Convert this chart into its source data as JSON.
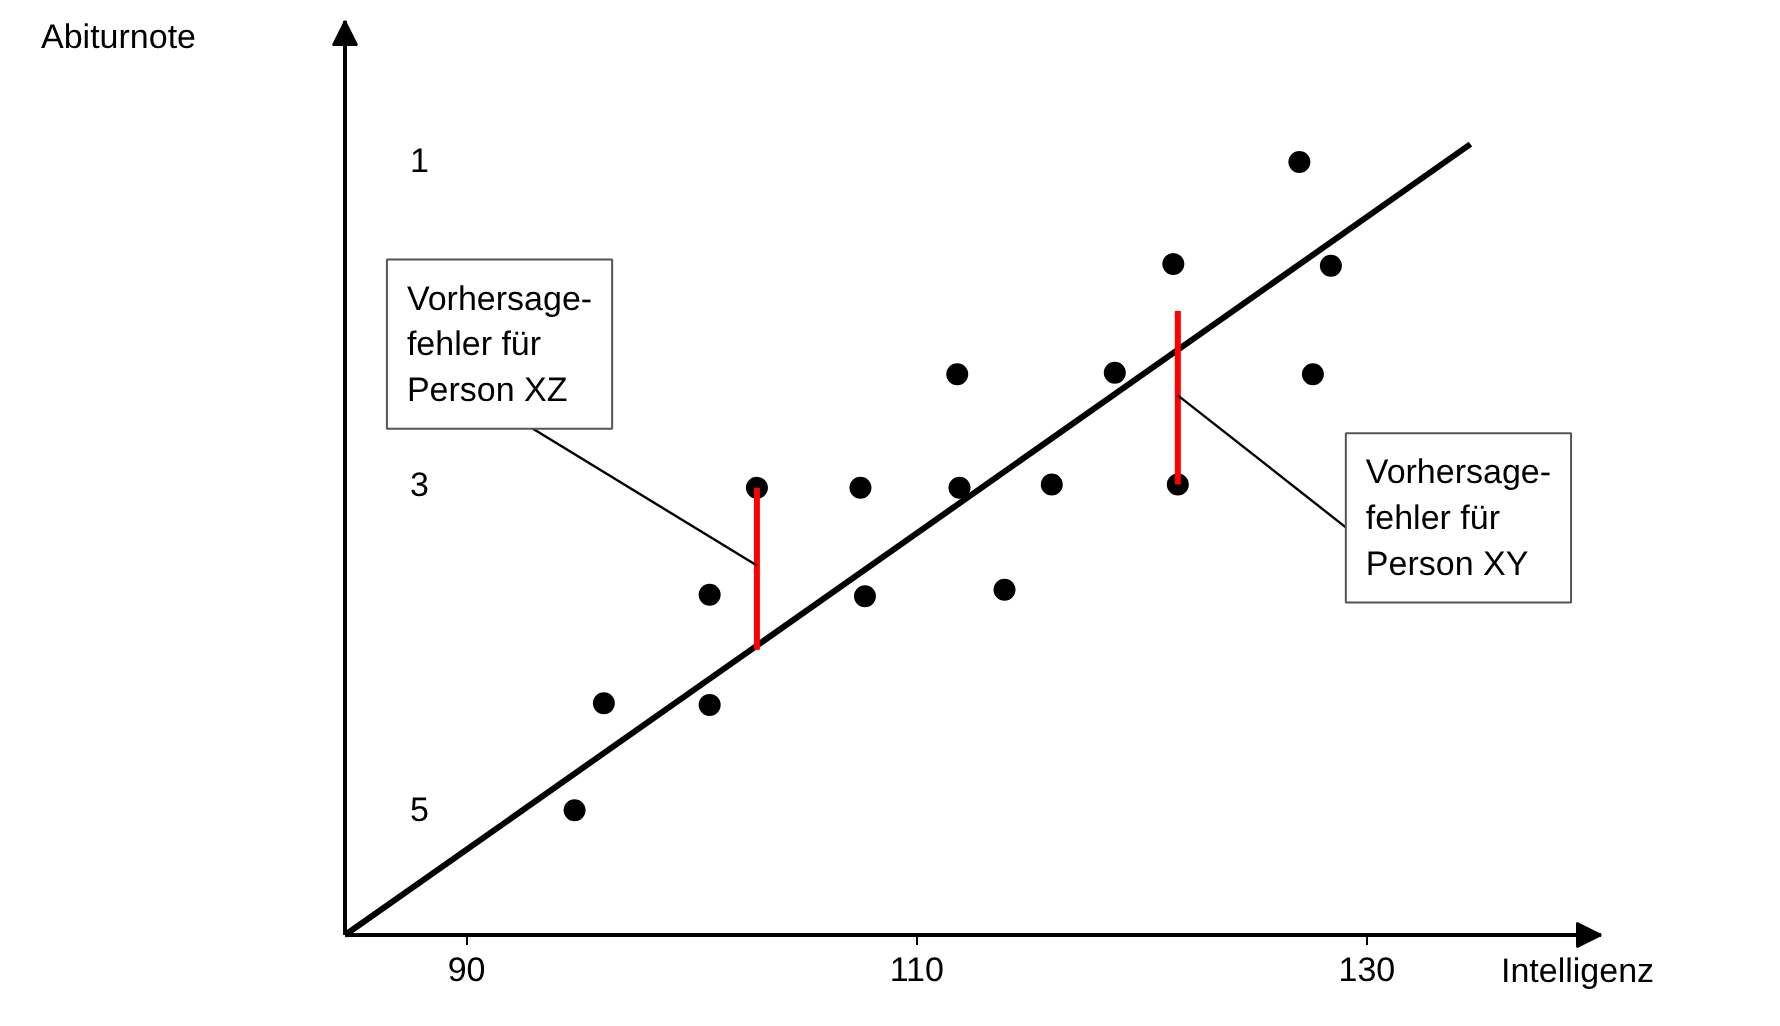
{
  "chart_data": {
    "type": "scatter",
    "xlabel": "Intelligenz",
    "ylabel": "Abiturnote",
    "xlim": [
      84.6,
      140.4
    ],
    "ylim": [
      5.78,
      0.14
    ],
    "xticks": [
      90,
      110,
      130
    ],
    "yticks": [
      1,
      3,
      5
    ],
    "grid": false,
    "series": [
      {
        "marker": "circle",
        "color": "#000000",
        "x": [
          94.8,
          96.1,
          100.8,
          100.8,
          102.9,
          107.5,
          107.7,
          111.8,
          111.9,
          113.9,
          116.0,
          118.8,
          121.4,
          121.6,
          127.0,
          127.6,
          128.4
        ],
        "values": [
          5.01,
          4.35,
          3.68,
          4.36,
          3.02,
          3.02,
          3.69,
          2.32,
          3.02,
          3.65,
          3.0,
          2.31,
          1.64,
          3.0,
          1.01,
          2.32,
          1.65
        ]
      },
      {
        "type": "line",
        "marker": "none",
        "color": "#000000",
        "x": [
          84.6,
          134.6
        ],
        "values": [
          5.78,
          0.9
        ]
      },
      {
        "type": "line",
        "marker": "none",
        "color": "#ff0000",
        "x": [
          102.9,
          102.9
        ],
        "values": [
          3.02,
          4.02
        ]
      },
      {
        "type": "line",
        "marker": "none",
        "color": "#ff0000",
        "x": [
          121.6,
          121.6
        ],
        "values": [
          1.93,
          3.0
        ]
      }
    ],
    "annotations": [
      {
        "text": "Vorhersage-\nfehler für\nPerson XZ",
        "x": 102.9,
        "y": 3.5
      },
      {
        "text": "Vorhersage-\nfehler für\nPerson XY",
        "x": 121.6,
        "y": 2.45
      }
    ]
  }
}
